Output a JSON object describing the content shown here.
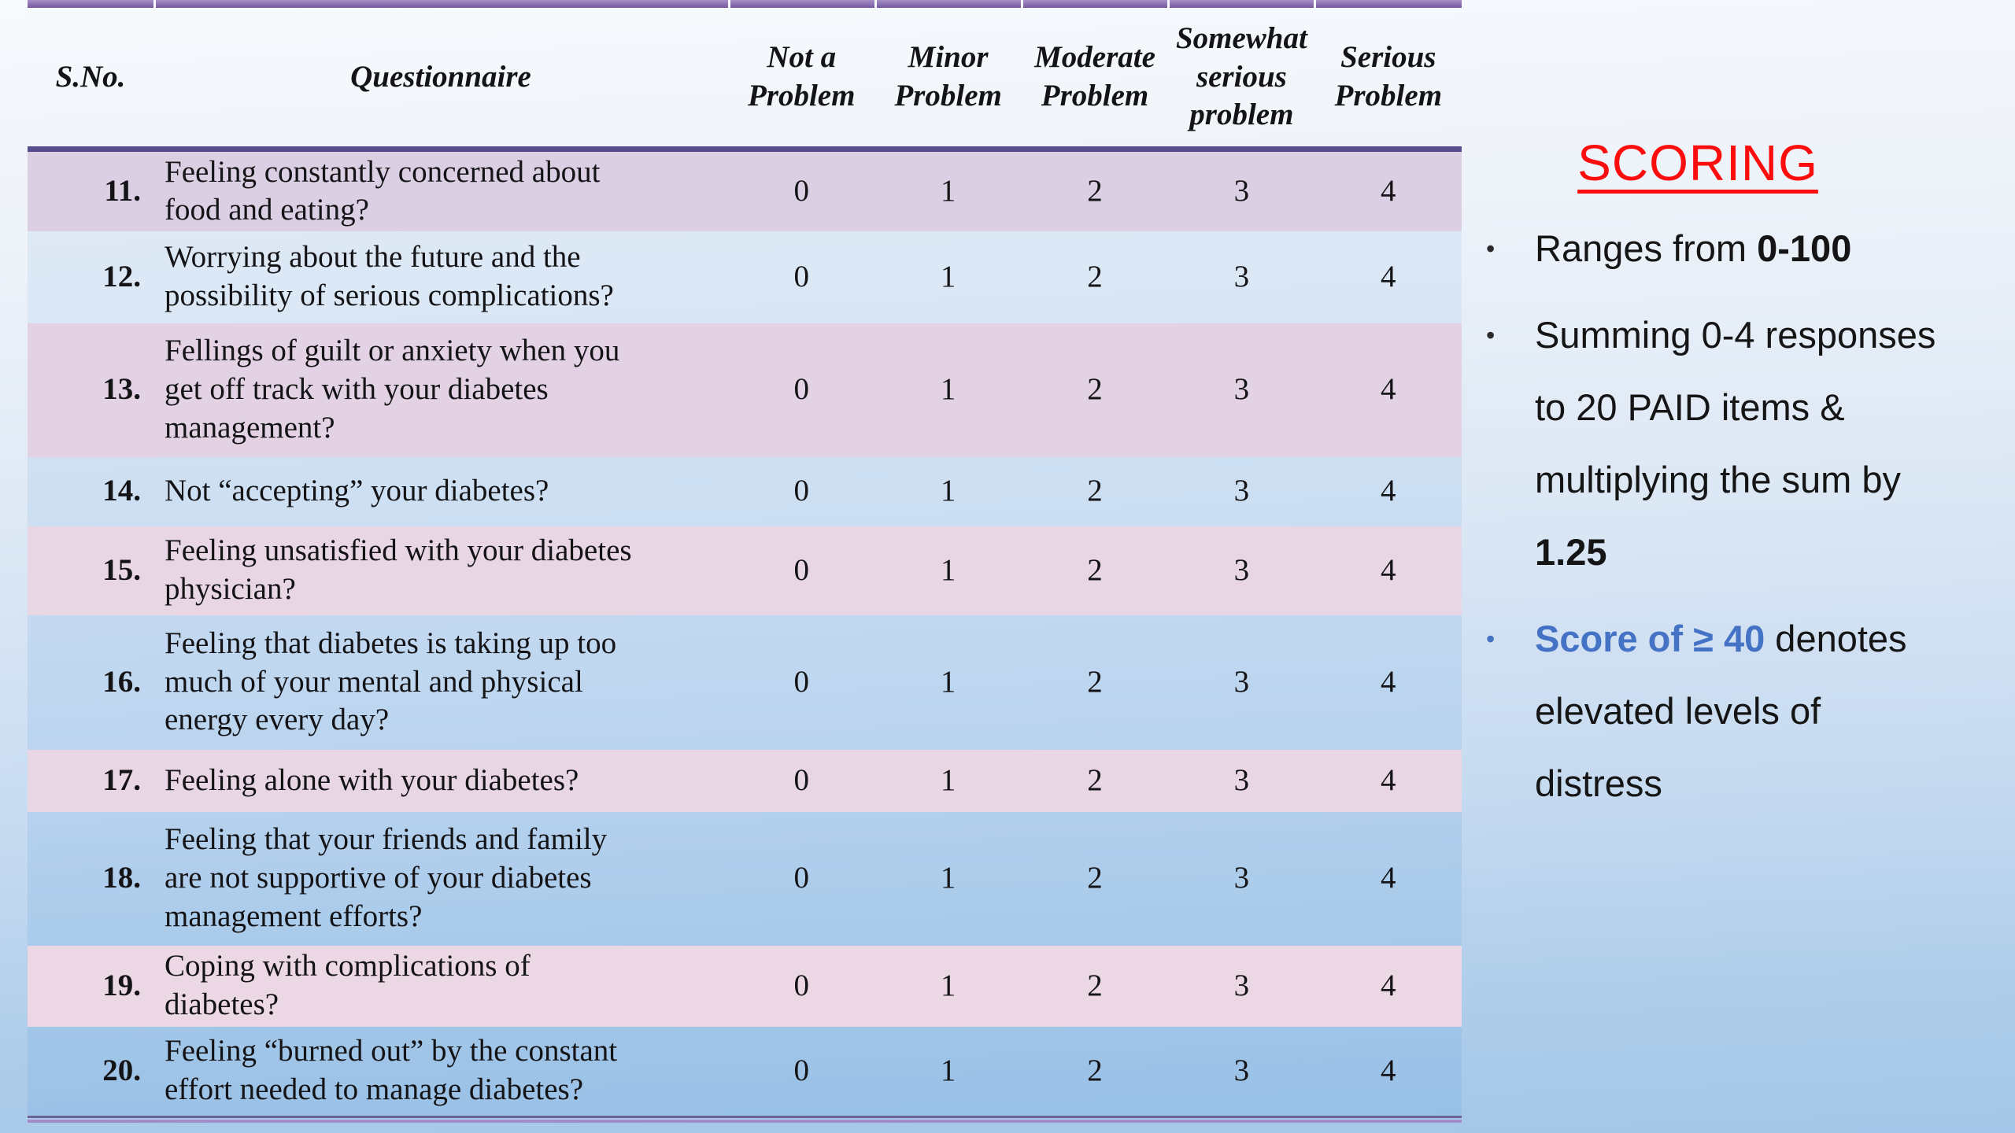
{
  "table": {
    "headers": [
      "S.No.",
      "Questionnaire",
      "Not a\nProblem",
      "Minor\nProblem",
      "Moderate\nProblem",
      "Somewhat\nserious\nproblem",
      "Serious\nProblem"
    ],
    "rows": [
      {
        "no": "11.",
        "question": "Feeling constantly concerned about\nfood and eating?",
        "values": [
          "0",
          "1",
          "2",
          "3",
          "4"
        ]
      },
      {
        "no": "12.",
        "question": "Worrying about the future and the\npossibility of serious complications?",
        "values": [
          "0",
          "1",
          "2",
          "3",
          "4"
        ]
      },
      {
        "no": "13.",
        "question": "Fellings of guilt or anxiety when you\nget off track with your diabetes\nmanagement?",
        "values": [
          "0",
          "1",
          "2",
          "3",
          "4"
        ]
      },
      {
        "no": "14.",
        "question": "Not “accepting” your diabetes?",
        "values": [
          "0",
          "1",
          "2",
          "3",
          "4"
        ]
      },
      {
        "no": "15.",
        "question": "Feeling unsatisfied with your diabetes\nphysician?",
        "values": [
          "0",
          "1",
          "2",
          "3",
          "4"
        ]
      },
      {
        "no": "16.",
        "question": "Feeling that diabetes is taking up too\nmuch of your mental and physical\nenergy every day?",
        "values": [
          "0",
          "1",
          "2",
          "3",
          "4"
        ]
      },
      {
        "no": "17.",
        "question": "Feeling alone with your diabetes?",
        "values": [
          "0",
          "1",
          "2",
          "3",
          "4"
        ]
      },
      {
        "no": "18.",
        "question": "Feeling that your friends and family\nare not supportive of your diabetes\nmanagement efforts?",
        "values": [
          "0",
          "1",
          "2",
          "3",
          "4"
        ]
      },
      {
        "no": "19.",
        "question": "Coping with complications of\ndiabetes?",
        "values": [
          "0",
          "1",
          "2",
          "3",
          "4"
        ]
      },
      {
        "no": "20.",
        "question": "Feeling “burned out” by the constant\neffort needed to manage diabetes?",
        "values": [
          "0",
          "1",
          "2",
          "3",
          "4"
        ]
      }
    ]
  },
  "scoring": {
    "title": "SCORING",
    "bullets": [
      {
        "accent": "black",
        "lines": [
          [
            {
              "t": "Ranges from "
            },
            {
              "t": "0-100",
              "bold": true
            }
          ]
        ]
      },
      {
        "accent": "black",
        "lines": [
          [
            {
              "t": "Summing 0-4 responses"
            }
          ],
          [
            {
              "t": "to 20 PAID items &"
            }
          ],
          [
            {
              "t": "multiplying the sum by"
            }
          ],
          [
            {
              "t": "1.25",
              "bold": true
            }
          ]
        ]
      },
      {
        "accent": "blue",
        "lines": [
          [
            {
              "t": "Score of ≥ 40",
              "blue": true
            },
            {
              "t": " denotes"
            }
          ],
          [
            {
              "t": "elevated levels of"
            }
          ],
          [
            {
              "t": "distress"
            }
          ]
        ]
      }
    ]
  },
  "colors": {
    "title_red": "#fb0d0d",
    "highlight_blue": "#4472c4",
    "border_purple": "#8a72b0",
    "header_underline_purple": "#564c8e",
    "pink_row": "#e2d2e4",
    "blue_row": "#c9def2",
    "text": "#141417"
  }
}
